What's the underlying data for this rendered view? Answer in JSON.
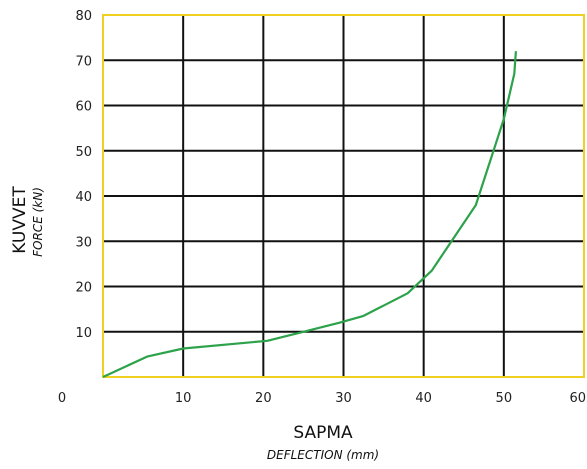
{
  "chart_data": {
    "type": "line",
    "title": "",
    "xlabel": "SAPMA",
    "xlabel_sub": "DEFLECTION (mm)",
    "ylabel": "KUVVET",
    "ylabel_sub": "FORCE (kN)",
    "xlim": [
      0,
      60
    ],
    "ylim": [
      0,
      80
    ],
    "x_ticks": [
      0,
      10,
      20,
      30,
      40,
      50,
      60
    ],
    "y_ticks": [
      10,
      20,
      30,
      40,
      50,
      60,
      70,
      80
    ],
    "x_tick_labels": [
      "0",
      "10",
      "20",
      "30",
      "40",
      "50",
      "60"
    ],
    "y_tick_labels": [
      "10",
      "20",
      "30",
      "40",
      "50",
      "60",
      "70",
      "80"
    ],
    "grid": true,
    "colors": {
      "line": "#2ca24a",
      "frame": "#f0d020",
      "grid": "#111111"
    },
    "series": [
      {
        "x": [
          0,
          5.5,
          10,
          20.5,
          25,
          29.5,
          32.5,
          38,
          41,
          46.5,
          50,
          51.3,
          51.5
        ],
        "y": [
          0,
          4.5,
          6.3,
          8,
          10,
          12,
          13.5,
          18.5,
          23.5,
          38,
          57,
          67,
          72
        ]
      }
    ]
  }
}
